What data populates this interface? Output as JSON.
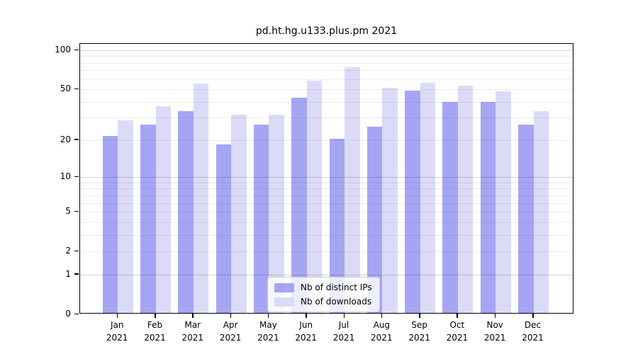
{
  "title": "pd.ht.hg.u133.plus.pm 2021",
  "chart_data": {
    "type": "bar",
    "title": "pd.ht.hg.u133.plus.pm 2021",
    "categories": [
      "Jan",
      "Feb",
      "Mar",
      "Apr",
      "May",
      "Jun",
      "Jul",
      "Aug",
      "Sep",
      "Oct",
      "Nov",
      "Dec"
    ],
    "year_label": "2021",
    "series": [
      {
        "name": "Nb of distinct IPs",
        "color": "#a5a5f4",
        "values": [
          21,
          26,
          33,
          18,
          26,
          42,
          20,
          25,
          48,
          39,
          39,
          26
        ]
      },
      {
        "name": "Nb of downloads",
        "color": "#dbdbf8",
        "values": [
          28,
          36,
          54,
          31,
          31,
          57,
          72,
          50,
          55,
          52,
          47,
          33
        ]
      }
    ],
    "xlabel": "",
    "ylabel": "",
    "yscale": "log1p",
    "yticks": [
      100,
      50,
      20,
      10,
      5,
      2,
      1,
      0
    ],
    "minor_gridlines": [
      2,
      3,
      4,
      5,
      6,
      7,
      8,
      9,
      20,
      30,
      40,
      50,
      60,
      70,
      80,
      90
    ],
    "major_gridlines": [
      1,
      10,
      100
    ],
    "ylim": [
      0,
      112
    ],
    "grid": "on",
    "legend_position": "lower center"
  }
}
